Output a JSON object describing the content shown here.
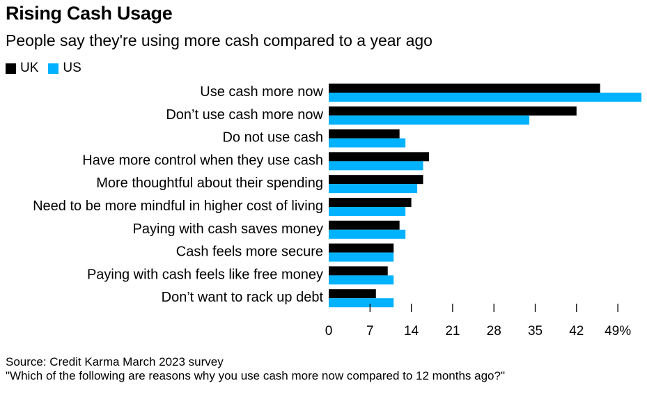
{
  "title": "Rising Cash Usage",
  "subtitle": "People say they're using more cash compared to a year ago",
  "colors": {
    "uk": "#000000",
    "us": "#00b2ff",
    "axis": "#000000"
  },
  "source_line1": "Source: Credit Karma March 2023 survey",
  "source_line2": "\"Which of the following are reasons why you use cash more now compared to 12 months ago?\"",
  "chart_data": {
    "type": "bar",
    "orientation": "horizontal",
    "title": "Rising Cash Usage",
    "subtitle": "People say they're using more cash compared to a year ago",
    "categories": [
      "Use cash more now",
      "Don’t use cash more now",
      "Do not use cash",
      "Have more control when they use cash",
      "More thoughtful about their spending",
      "Need to be more mindful in higher cost of living",
      "Paying with cash saves money",
      "Cash feels more secure",
      "Paying with cash feels like free money",
      "Don’t want to rack up debt"
    ],
    "series": [
      {
        "name": "UK",
        "values": [
          46,
          42,
          12,
          17,
          16,
          14,
          12,
          11,
          10,
          8
        ]
      },
      {
        "name": "US",
        "values": [
          53,
          34,
          13,
          16,
          15,
          13,
          13,
          11,
          11,
          11
        ]
      }
    ],
    "xlim": [
      0,
      53
    ],
    "xticks": [
      0,
      7,
      14,
      21,
      28,
      35,
      42,
      49
    ],
    "xtick_labels": [
      "0",
      "7",
      "14",
      "21",
      "28",
      "35",
      "42",
      "49%"
    ],
    "legend": "top-left",
    "grid": false
  }
}
